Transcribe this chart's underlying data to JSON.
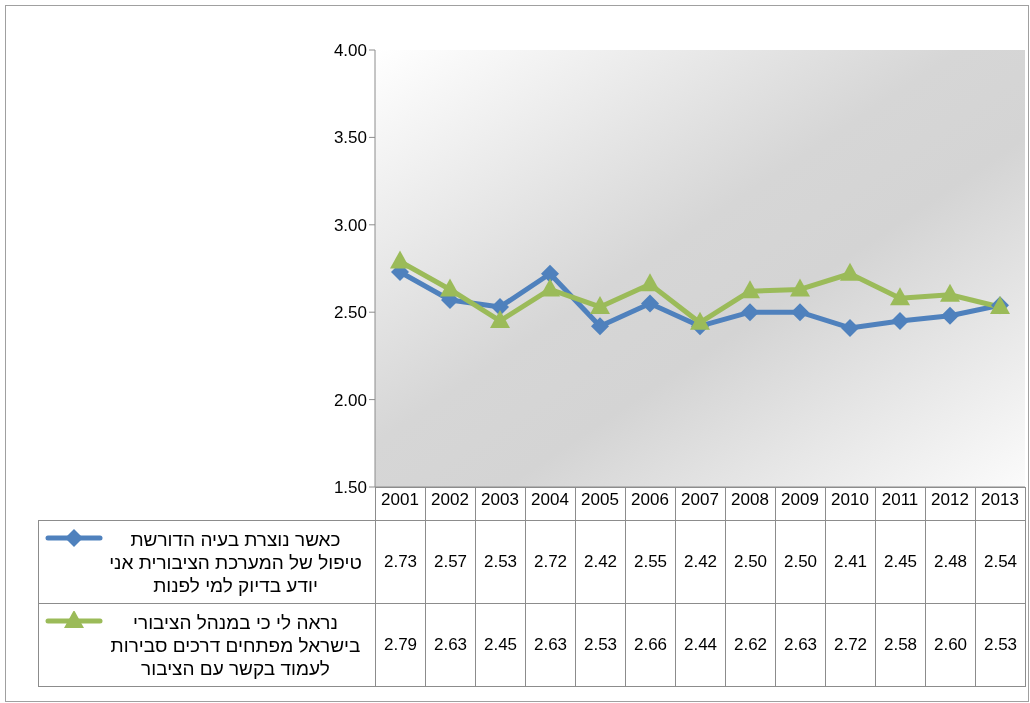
{
  "chart_data": {
    "type": "line",
    "categories": [
      "2001",
      "2002",
      "2003",
      "2004",
      "2005",
      "2006",
      "2007",
      "2008",
      "2009",
      "2010",
      "2011",
      "2012",
      "2013"
    ],
    "series": [
      {
        "name": "כאשר נוצרת בעיה הדורשת טיפול של המערכת הציבורית אני יודע בדיוק למי לפנות",
        "color": "#4f81bd",
        "marker": "diamond",
        "values": [
          2.73,
          2.57,
          2.53,
          2.72,
          2.42,
          2.55,
          2.42,
          2.5,
          2.5,
          2.41,
          2.45,
          2.48,
          2.54
        ],
        "value_labels": [
          "2.73",
          "2.57",
          "2.53",
          "2.72",
          "2.42",
          "2.55",
          "2.42",
          "2.50",
          "2.50",
          "2.41",
          "2.45",
          "2.48",
          "2.54"
        ]
      },
      {
        "name": "נראה לי כי במנהל הציבורי בישראל מפתחים דרכים סבירות לעמוד בקשר עם הציבור",
        "color": "#9bbb59",
        "marker": "triangle",
        "values": [
          2.79,
          2.63,
          2.45,
          2.63,
          2.53,
          2.66,
          2.44,
          2.62,
          2.63,
          2.72,
          2.58,
          2.6,
          2.53
        ],
        "value_labels": [
          "2.79",
          "2.63",
          "2.45",
          "2.63",
          "2.53",
          "2.66",
          "2.44",
          "2.62",
          "2.63",
          "2.72",
          "2.58",
          "2.60",
          "2.53"
        ]
      }
    ],
    "ylim": [
      1.5,
      4
    ],
    "yticks": [
      {
        "value": 1.5,
        "label": "1.50"
      },
      {
        "value": 2,
        "label": "2.00"
      },
      {
        "value": 2.5,
        "label": "2.50"
      },
      {
        "value": 3,
        "label": "3.00"
      },
      {
        "value": 3.5,
        "label": "3.50"
      },
      {
        "value": 4,
        "label": "4.00"
      }
    ],
    "legend": "bottom",
    "line_style": "solid"
  }
}
